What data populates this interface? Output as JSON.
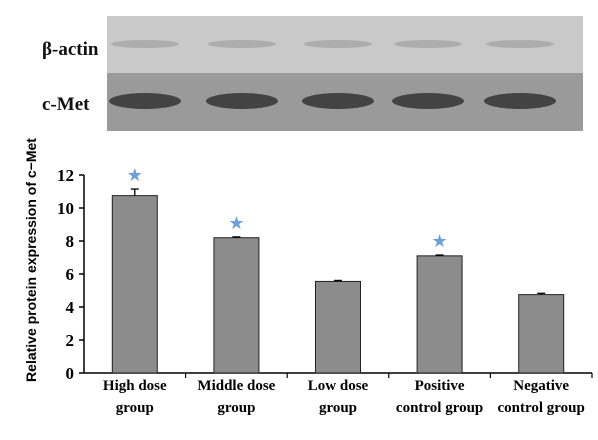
{
  "blot": {
    "lanes": 5,
    "rows": [
      {
        "label": "β-actin",
        "band_intensity": "faint"
      },
      {
        "label": "c-Met",
        "band_intensity": "strong"
      }
    ],
    "colors": {
      "top_bg": "#c9c9c9",
      "bottom_bg": "#9a9a9a",
      "band_top": "#a8a8a8",
      "band_bottom": "#3a3a3a"
    }
  },
  "chart_data": {
    "type": "bar",
    "categories": [
      [
        "High dose",
        "group"
      ],
      [
        "Middle dose",
        "group"
      ],
      [
        "Low dose",
        "group"
      ],
      [
        "Positive",
        "control group"
      ],
      [
        "Negative",
        "control group"
      ]
    ],
    "values": [
      10.75,
      8.2,
      5.55,
      7.1,
      4.75
    ],
    "errors": [
      0.4,
      0.05,
      0.06,
      0.05,
      0.08
    ],
    "significant": [
      true,
      true,
      false,
      true,
      false
    ],
    "marker": "★",
    "ylabel": "Relative protein expression of c−Met",
    "ylim": [
      0,
      12
    ],
    "yticks": [
      0,
      2,
      4,
      6,
      8,
      10,
      12
    ],
    "grid": false,
    "colors": {
      "bar": "#8c8c8c",
      "bar_stroke": "#222222",
      "marker": "#6f9fd8"
    }
  }
}
